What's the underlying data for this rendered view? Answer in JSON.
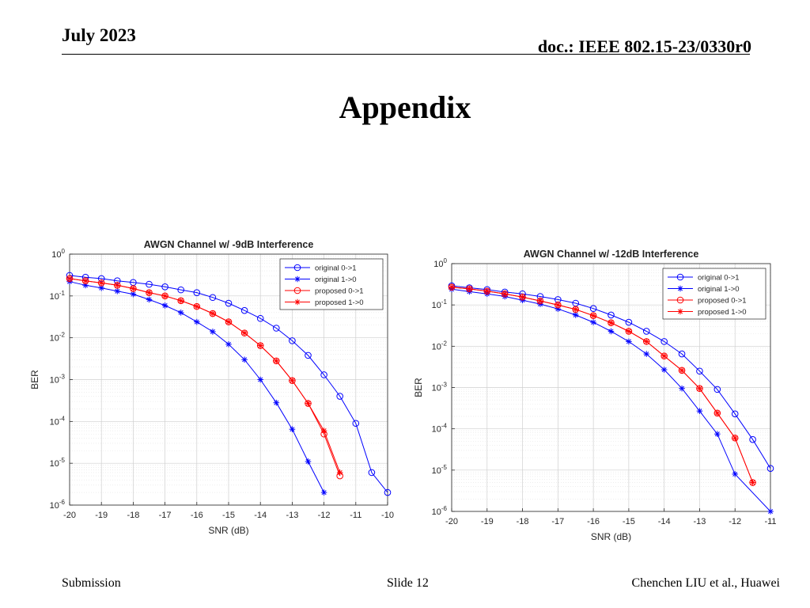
{
  "header": {
    "date": "July 2023",
    "doc": "doc.: IEEE 802.15-23/0330r0"
  },
  "slide": {
    "title": "Appendix"
  },
  "footer": {
    "left": "Submission",
    "center": "Slide 12",
    "right": "Chenchen LIU et al., Huawei"
  },
  "colors": {
    "blue": "#0000ff",
    "red": "#ff0000"
  },
  "chart_data": [
    {
      "type": "line",
      "title": "AWGN Channel w/ -9dB Interference",
      "xlabel": "SNR (dB)",
      "ylabel": "BER",
      "xlim": [
        -20,
        -10
      ],
      "ylim": [
        1e-06,
        1
      ],
      "yscale": "log",
      "xticks": [
        "-20",
        "-19",
        "-18",
        "-17",
        "-16",
        "-15",
        "-14",
        "-13",
        "-12",
        "-11",
        "-10"
      ],
      "yticks": [
        {
          "base": "10",
          "exp": "0"
        },
        {
          "base": "10",
          "exp": "-1"
        },
        {
          "base": "10",
          "exp": "-2"
        },
        {
          "base": "10",
          "exp": "-3"
        },
        {
          "base": "10",
          "exp": "-4"
        },
        {
          "base": "10",
          "exp": "-5"
        },
        {
          "base": "10",
          "exp": "-6"
        }
      ],
      "grid": true,
      "legend_position": "top-right",
      "series": [
        {
          "name": "original 0->1",
          "color": "blue",
          "marker": "circle",
          "x": [
            -20,
            -19.5,
            -19,
            -18.5,
            -18,
            -17.5,
            -17,
            -16.5,
            -16,
            -15.5,
            -15,
            -14.5,
            -14,
            -13.5,
            -13,
            -12.5,
            -12,
            -11.5,
            -11,
            -10.5,
            -10
          ],
          "y": [
            0.31,
            0.28,
            0.26,
            0.23,
            0.21,
            0.19,
            0.165,
            0.14,
            0.12,
            0.092,
            0.067,
            0.045,
            0.029,
            0.017,
            0.0085,
            0.0038,
            0.0013,
            0.0004,
            9e-05,
            6e-06,
            2e-06
          ]
        },
        {
          "name": "original 1->0",
          "color": "blue",
          "marker": "star",
          "x": [
            -20,
            -19.5,
            -19,
            -18.5,
            -18,
            -17.5,
            -17,
            -16.5,
            -16,
            -15.5,
            -15,
            -14.5,
            -14,
            -13.5,
            -13,
            -12.5,
            -12
          ],
          "y": [
            0.22,
            0.18,
            0.155,
            0.13,
            0.11,
            0.082,
            0.059,
            0.04,
            0.024,
            0.014,
            0.007,
            0.003,
            0.001,
            0.00028,
            6.5e-05,
            1.1e-05,
            2e-06
          ]
        },
        {
          "name": "proposed 0->1",
          "color": "red",
          "marker": "circle",
          "x": [
            -20,
            -19.5,
            -19,
            -18.5,
            -18,
            -17.5,
            -17,
            -16.5,
            -16,
            -15.5,
            -15,
            -14.5,
            -14,
            -13.5,
            -13,
            -12.5,
            -12,
            -11.5
          ],
          "y": [
            0.26,
            0.23,
            0.205,
            0.18,
            0.15,
            0.12,
            0.1,
            0.077,
            0.056,
            0.038,
            0.024,
            0.013,
            0.0065,
            0.0028,
            0.00095,
            0.00027,
            5e-05,
            5e-06
          ]
        },
        {
          "name": "proposed 1->0",
          "color": "red",
          "marker": "star",
          "x": [
            -20,
            -19.5,
            -19,
            -18.5,
            -18,
            -17.5,
            -17,
            -16.5,
            -16,
            -15.5,
            -15,
            -14.5,
            -14,
            -13.5,
            -13,
            -12.5,
            -12,
            -11.5
          ],
          "y": [
            0.26,
            0.23,
            0.205,
            0.18,
            0.15,
            0.12,
            0.1,
            0.077,
            0.056,
            0.038,
            0.024,
            0.013,
            0.0065,
            0.0028,
            0.00095,
            0.00027,
            6e-05,
            6e-06
          ]
        }
      ]
    },
    {
      "type": "line",
      "title": "AWGN Channel w/ -12dB Interference",
      "xlabel": "SNR (dB)",
      "ylabel": "BER",
      "xlim": [
        -20,
        -11
      ],
      "ylim": [
        1e-06,
        1
      ],
      "yscale": "log",
      "xticks": [
        "-20",
        "-19",
        "-18",
        "-17",
        "-16",
        "-15",
        "-14",
        "-13",
        "-12",
        "-11"
      ],
      "yticks": [
        {
          "base": "10",
          "exp": "0"
        },
        {
          "base": "10",
          "exp": "-1"
        },
        {
          "base": "10",
          "exp": "-2"
        },
        {
          "base": "10",
          "exp": "-3"
        },
        {
          "base": "10",
          "exp": "-4"
        },
        {
          "base": "10",
          "exp": "-5"
        },
        {
          "base": "10",
          "exp": "-6"
        }
      ],
      "grid": true,
      "legend_position": "top-right",
      "series": [
        {
          "name": "original 0->1",
          "color": "blue",
          "marker": "circle",
          "x": [
            -20,
            -19.5,
            -19,
            -18.5,
            -18,
            -17.5,
            -17,
            -16.5,
            -16,
            -15.5,
            -15,
            -14.5,
            -14,
            -13.5,
            -13,
            -12.5,
            -12,
            -11.5,
            -11
          ],
          "y": [
            0.29,
            0.26,
            0.235,
            0.205,
            0.185,
            0.16,
            0.135,
            0.11,
            0.082,
            0.057,
            0.038,
            0.023,
            0.013,
            0.0065,
            0.0025,
            0.0009,
            0.00023,
            5.5e-05,
            1.1e-05
          ]
        },
        {
          "name": "original 1->0",
          "color": "blue",
          "marker": "star",
          "x": [
            -20,
            -19.5,
            -19,
            -18.5,
            -18,
            -17.5,
            -17,
            -16.5,
            -16,
            -15.5,
            -15,
            -14.5,
            -14,
            -13.5,
            -13,
            -12.5,
            -12,
            -11
          ],
          "y": [
            0.24,
            0.21,
            0.185,
            0.16,
            0.13,
            0.105,
            0.08,
            0.057,
            0.038,
            0.023,
            0.013,
            0.0065,
            0.0027,
            0.00095,
            0.00027,
            7.5e-05,
            8e-06,
            1e-06
          ]
        },
        {
          "name": "proposed 0->1",
          "color": "red",
          "marker": "circle",
          "x": [
            -20,
            -19.5,
            -19,
            -18.5,
            -18,
            -17.5,
            -17,
            -16.5,
            -16,
            -15.5,
            -15,
            -14.5,
            -14,
            -13.5,
            -13,
            -12.5,
            -12,
            -11.5
          ],
          "y": [
            0.27,
            0.245,
            0.215,
            0.185,
            0.155,
            0.125,
            0.1,
            0.078,
            0.055,
            0.037,
            0.023,
            0.013,
            0.0058,
            0.0026,
            0.00095,
            0.00024,
            6e-05,
            5e-06
          ]
        },
        {
          "name": "proposed 1->0",
          "color": "red",
          "marker": "star",
          "x": [
            -20,
            -19.5,
            -19,
            -18.5,
            -18,
            -17.5,
            -17,
            -16.5,
            -16,
            -15.5,
            -15,
            -14.5,
            -14,
            -13.5,
            -13,
            -12.5,
            -12,
            -11.5
          ],
          "y": [
            0.27,
            0.245,
            0.215,
            0.185,
            0.155,
            0.125,
            0.1,
            0.078,
            0.055,
            0.037,
            0.023,
            0.013,
            0.0058,
            0.0026,
            0.00095,
            0.00024,
            6e-05,
            5e-06
          ]
        }
      ]
    }
  ]
}
